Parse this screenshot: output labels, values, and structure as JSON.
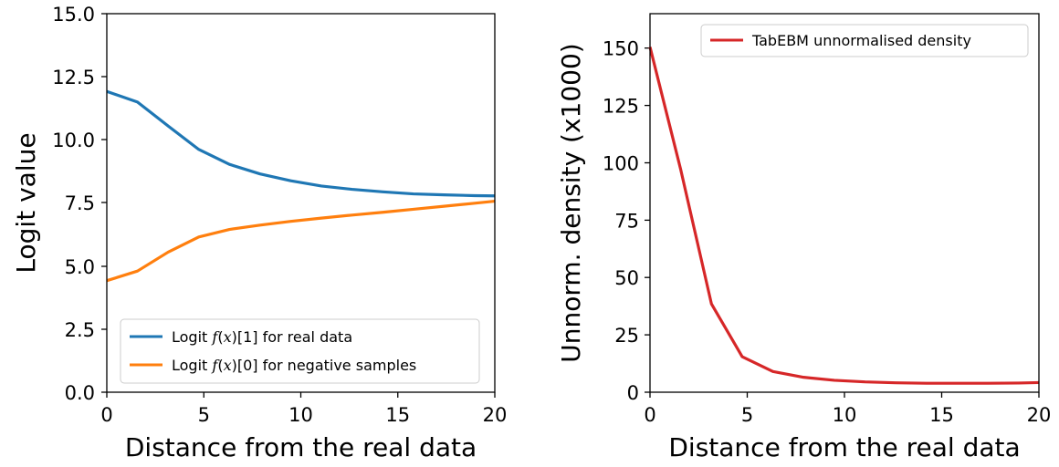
{
  "chart_data": [
    {
      "type": "line",
      "xlabel": "Distance from the real data",
      "ylabel": "Logit value",
      "xlim": [
        0,
        20
      ],
      "ylim": [
        0,
        15
      ],
      "xticks": [
        "0",
        "5",
        "10",
        "15",
        "20"
      ],
      "yticks": [
        "0.0",
        "2.5",
        "5.0",
        "7.5",
        "10.0",
        "12.5",
        "15.0"
      ],
      "legend_position": "lower-center",
      "series": [
        {
          "name": "Logit f(x)[1] for real data",
          "legend_prefix": "Logit ",
          "legend_italic_1": "f",
          "legend_paren_open": "(",
          "legend_italic_2": "x",
          "legend_suffix": ")[1] for real data",
          "color": "#1f77b4",
          "x": [
            0,
            1.58,
            3.16,
            4.74,
            6.32,
            7.9,
            9.48,
            11.06,
            12.64,
            14.22,
            15.8,
            17.38,
            18.96,
            20
          ],
          "y": [
            11.92,
            11.5,
            10.55,
            9.62,
            9.03,
            8.65,
            8.38,
            8.17,
            8.04,
            7.94,
            7.86,
            7.82,
            7.79,
            7.78
          ]
        },
        {
          "name": "Logit f(x)[0] for negative samples",
          "legend_prefix": "Logit ",
          "legend_italic_1": "f",
          "legend_paren_open": "(",
          "legend_italic_2": "x",
          "legend_suffix": ")[0] for negative samples",
          "color": "#ff7f0e",
          "x": [
            0,
            1.58,
            3.16,
            4.74,
            6.32,
            7.9,
            9.48,
            11.06,
            12.64,
            14.22,
            15.8,
            17.38,
            18.96,
            20
          ],
          "y": [
            4.42,
            4.8,
            5.55,
            6.15,
            6.45,
            6.62,
            6.77,
            6.9,
            7.02,
            7.13,
            7.25,
            7.37,
            7.49,
            7.57
          ]
        }
      ]
    },
    {
      "type": "line",
      "xlabel": "Distance from the real data",
      "ylabel": "Unnorm. density (x1000)",
      "xlim": [
        0,
        20
      ],
      "ylim": [
        0,
        165
      ],
      "xticks": [
        "0",
        "5",
        "10",
        "15",
        "20"
      ],
      "yticks": [
        "0",
        "25",
        "50",
        "75",
        "100",
        "125",
        "150"
      ],
      "legend_position": "top-right",
      "series": [
        {
          "name": "TabEBM unnormalised density",
          "color": "#d62728",
          "x": [
            0,
            1.58,
            3.16,
            4.74,
            6.32,
            7.9,
            9.48,
            11.06,
            12.64,
            14.22,
            15.8,
            17.38,
            18.96,
            20
          ],
          "y": [
            150.5,
            97,
            38.5,
            15.5,
            9,
            6.5,
            5.2,
            4.5,
            4.1,
            3.9,
            3.9,
            3.9,
            4.0,
            4.2
          ]
        }
      ]
    }
  ]
}
